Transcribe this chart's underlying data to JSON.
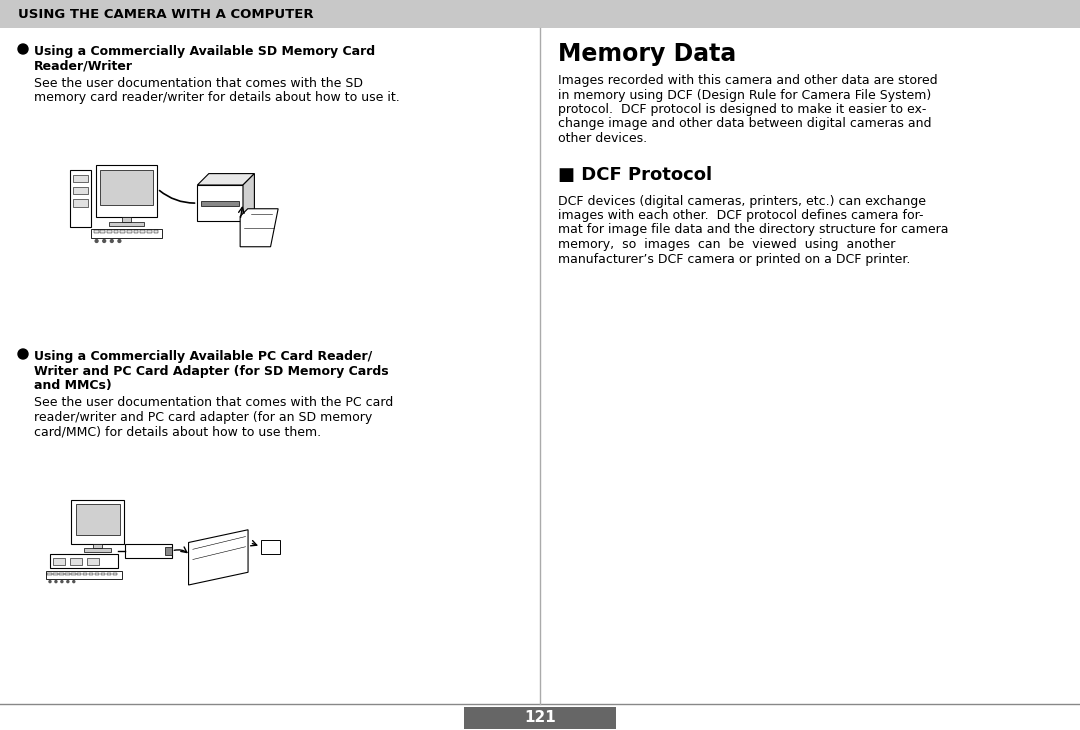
{
  "bg_color": "#ffffff",
  "header_bg": "#c8c8c8",
  "header_text": "USING THE CAMERA WITH A COMPUTER",
  "header_text_color": "#000000",
  "page_number": "121",
  "page_num_bg": "#666666",
  "page_num_color": "#ffffff",
  "left": {
    "b1_line1": "Using a Commercially Available SD Memory Card",
    "b1_line2": "Reader/Writer",
    "b1_body": [
      "See the user documentation that comes with the SD",
      "memory card reader/writer for details about how to use it."
    ],
    "b2_line1": "Using a Commercially Available PC Card Reader/",
    "b2_line2": "Writer and PC Card Adapter (for SD Memory Cards",
    "b2_line3": "and MMCs)",
    "b2_body": [
      "See the user documentation that comes with the PC card",
      "reader/writer and PC card adapter (for an SD memory",
      "card/MMC) for details about how to use them."
    ]
  },
  "right": {
    "title": "Memory Data",
    "p1": [
      "Images recorded with this camera and other data are stored",
      "in memory using DCF (Design Rule for Camera File System)",
      "protocol.  DCF protocol is designed to make it easier to ex-",
      "change image and other data between digital cameras and",
      "other devices."
    ],
    "sec": "■ DCF Protocol",
    "p2": [
      "DCF devices (digital cameras, printers, etc.) can exchange",
      "images with each other.  DCF protocol defines camera for-",
      "mat for image file data and the directory structure for camera",
      "memory,  so  images  can  be  viewed  using  another",
      "manufacturer’s DCF camera or printed on a DCF printer."
    ]
  },
  "divider_color": "#aaaaaa",
  "line_color": "#888888"
}
